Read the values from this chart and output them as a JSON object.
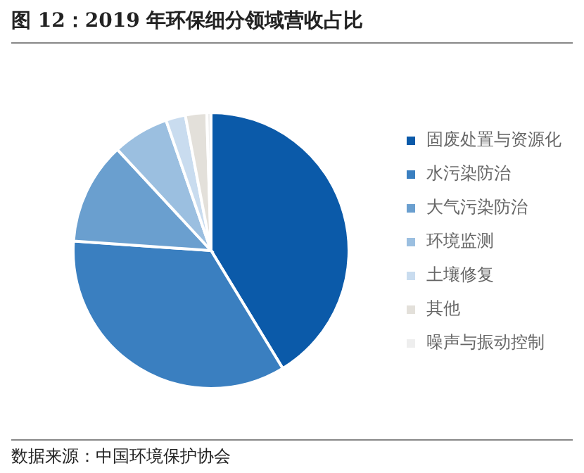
{
  "chart_data": {
    "type": "pie",
    "title": "图 12：2019 年环保细分领域营收占比",
    "categories": [
      "固废处置与资源化",
      "水污染防治",
      "大气污染防治",
      "环境监测",
      "土壤修复",
      "其他",
      "噪声与振动控制"
    ],
    "values": [
      41.3,
      34.8,
      12,
      6.6,
      2.3,
      2.5,
      0.5
    ],
    "colors": [
      "#0b5aa9",
      "#3a7fc0",
      "#6a9fcf",
      "#9bbfe0",
      "#c9dcef",
      "#e3e0da",
      "#eeeeee"
    ],
    "legend": "right",
    "annotations": [
      "数据来源：中国环境保护协会"
    ]
  }
}
